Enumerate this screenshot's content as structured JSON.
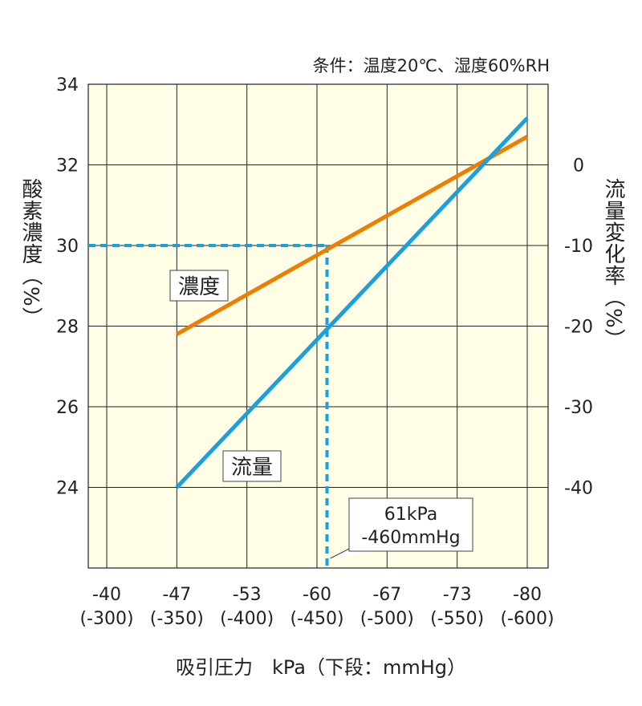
{
  "chart_data": {
    "type": "line",
    "condition_note": "条件：温度20℃、湿度60%RH",
    "xlabel": "吸引圧力　kPa（下段：mmHg）",
    "ylabel_left": "酸素濃度（%）",
    "ylabel_right": "流量変化率（%）",
    "categories": [
      "-40",
      "-47",
      "-53",
      "-60",
      "-67",
      "-73",
      "-80"
    ],
    "categories_mmhg": [
      "(-300)",
      "(-350)",
      "(-400)",
      "(-450)",
      "(-500)",
      "(-550)",
      "(-600)"
    ],
    "ylim_left": [
      22,
      34
    ],
    "yticks_left": [
      "24",
      "26",
      "28",
      "30",
      "32",
      "34"
    ],
    "ylim_right": [
      -50,
      10
    ],
    "yticks_right": [
      "-40",
      "-30",
      "-20",
      "-10",
      "0"
    ],
    "grid": true,
    "series": [
      {
        "name": "濃度",
        "axis": "left",
        "color": "#ee7d00",
        "x_start": "-47",
        "x_end": "-80",
        "y_start": 27.8,
        "y_end": 32.7
      },
      {
        "name": "流量",
        "axis": "right",
        "color": "#1aa0e0",
        "x_start": "-47",
        "x_end": "-80",
        "y_start": -40,
        "y_end": 5.8
      }
    ],
    "annotation": {
      "x": "-61",
      "x_mmhg": "-460",
      "y": 30,
      "line1": "61kPa",
      "line2": "-460mmHg"
    }
  }
}
